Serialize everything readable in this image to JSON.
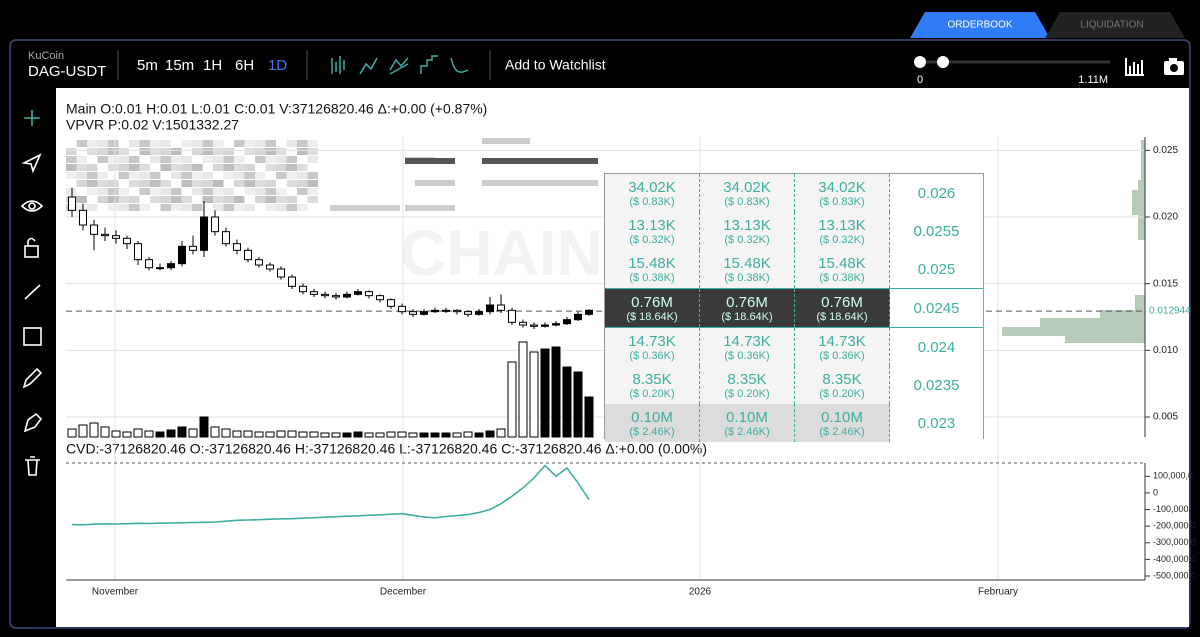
{
  "tabs": [
    "ORDERBOOK",
    "LIQUIDATION"
  ],
  "toolbar": {
    "exchange": "KuCoin",
    "pair": "DAG-USDT",
    "timeframes": [
      "5m",
      "15m",
      "1H",
      "6H",
      "1D"
    ],
    "watchlist": "Add to Watchlist",
    "slider_min": "0",
    "slider_max": "1.11M"
  },
  "main_legend": "Main O:0.01 H:0.01 L:0.01 C:0.01 V:37126820.46 Δ:+0.00 (+0.87%)",
  "vpvr_legend": "VPVR P:0.02 V:1501332.27",
  "watermark": "CHAIN",
  "price_chart": {
    "type": "candlestick",
    "candles": [
      [
        0.0215,
        0.0222,
        0.02,
        0.0205
      ],
      [
        0.0205,
        0.021,
        0.019,
        0.0194
      ],
      [
        0.0194,
        0.0198,
        0.0175,
        0.0187
      ],
      [
        0.0187,
        0.0192,
        0.0182,
        0.0186
      ],
      [
        0.0186,
        0.019,
        0.018,
        0.0184
      ],
      [
        0.0184,
        0.0186,
        0.0176,
        0.018
      ],
      [
        0.018,
        0.0182,
        0.0164,
        0.0168
      ],
      [
        0.0168,
        0.017,
        0.016,
        0.0162
      ],
      [
        0.0162,
        0.0165,
        0.016,
        0.0162
      ],
      [
        0.0162,
        0.0167,
        0.016,
        0.0165
      ],
      [
        0.0165,
        0.0182,
        0.0163,
        0.0178
      ],
      [
        0.0178,
        0.0186,
        0.0172,
        0.0175
      ],
      [
        0.0175,
        0.0212,
        0.017,
        0.02
      ],
      [
        0.02,
        0.0205,
        0.0186,
        0.0189
      ],
      [
        0.0189,
        0.0192,
        0.0178,
        0.018
      ],
      [
        0.018,
        0.0183,
        0.0172,
        0.0175
      ],
      [
        0.0175,
        0.0177,
        0.0166,
        0.0168
      ],
      [
        0.0168,
        0.017,
        0.0162,
        0.0164
      ],
      [
        0.0164,
        0.0166,
        0.0159,
        0.0161
      ],
      [
        0.0161,
        0.0163,
        0.0153,
        0.0155
      ],
      [
        0.0155,
        0.0157,
        0.0146,
        0.0148
      ],
      [
        0.0148,
        0.015,
        0.0142,
        0.0144
      ],
      [
        0.0144,
        0.0146,
        0.014,
        0.0142
      ],
      [
        0.0142,
        0.0144,
        0.0139,
        0.0141
      ],
      [
        0.0141,
        0.0143,
        0.0138,
        0.014
      ],
      [
        0.014,
        0.0144,
        0.0139,
        0.0142
      ],
      [
        0.0142,
        0.0146,
        0.0141,
        0.0144
      ],
      [
        0.0144,
        0.0145,
        0.0139,
        0.0141
      ],
      [
        0.0141,
        0.0142,
        0.0136,
        0.0138
      ],
      [
        0.0138,
        0.0139,
        0.0131,
        0.0133
      ],
      [
        0.0133,
        0.0135,
        0.0127,
        0.0129
      ],
      [
        0.0129,
        0.0131,
        0.0125,
        0.0127
      ],
      [
        0.0127,
        0.0131,
        0.0126,
        0.0129
      ],
      [
        0.0129,
        0.0132,
        0.0128,
        0.013
      ],
      [
        0.013,
        0.0132,
        0.0128,
        0.013
      ],
      [
        0.013,
        0.0131,
        0.0127,
        0.0129
      ],
      [
        0.0129,
        0.013,
        0.0125,
        0.0127
      ],
      [
        0.0127,
        0.0131,
        0.0126,
        0.0129
      ],
      [
        0.0129,
        0.014,
        0.0127,
        0.0134
      ],
      [
        0.0134,
        0.0142,
        0.0128,
        0.013
      ],
      [
        0.013,
        0.0132,
        0.0119,
        0.0121
      ],
      [
        0.0121,
        0.0123,
        0.0117,
        0.0119
      ],
      [
        0.0119,
        0.0121,
        0.0116,
        0.0118
      ],
      [
        0.0118,
        0.0121,
        0.0117,
        0.0119
      ],
      [
        0.0119,
        0.0122,
        0.0118,
        0.012
      ],
      [
        0.012,
        0.0125,
        0.0119,
        0.0123
      ],
      [
        0.0123,
        0.0129,
        0.0122,
        0.0127
      ],
      [
        0.0127,
        0.0131,
        0.0126,
        0.013
      ]
    ],
    "volumes": [
      8,
      12,
      14,
      10,
      6,
      5,
      8,
      6,
      5,
      7,
      10,
      8,
      20,
      10,
      8,
      6,
      6,
      5,
      5,
      6,
      6,
      5,
      5,
      4,
      4,
      4,
      5,
      4,
      4,
      5,
      5,
      4,
      4,
      4,
      4,
      4,
      5,
      4,
      6,
      8,
      75,
      95,
      85,
      88,
      90,
      70,
      65,
      40
    ],
    "ylim": [
      0.0035,
      0.026
    ],
    "yticks": [
      0.025,
      {
        "value": 0.02,
        "label": "0.020"
      },
      0.015,
      {
        "value": 0.01,
        "label": "0.010"
      },
      0.005
    ],
    "last_price": 0.012944,
    "xticks": [
      "November",
      "December",
      "2026",
      "February"
    ]
  },
  "orderbook": {
    "rows": [
      {
        "amount": "34.02K",
        "value": "($ 0.83K)",
        "price": "0.026"
      },
      {
        "amount": "13.13K",
        "value": "($ 0.32K)",
        "price": "0.0255"
      },
      {
        "amount": "15.48K",
        "value": "($ 0.38K)",
        "price": "0.025"
      },
      {
        "amount": "0.76M",
        "value": "($ 18.64K)",
        "price": "0.0245"
      },
      {
        "amount": "14.73K",
        "value": "($ 0.36K)",
        "price": "0.024"
      },
      {
        "amount": "8.35K",
        "value": "($ 0.20K)",
        "price": "0.0235"
      },
      {
        "amount": "0.10M",
        "value": "($ 2.46K)",
        "price": "0.023"
      }
    ]
  },
  "cvd": {
    "type": "line",
    "legend": "CVD:-37126820.46 O:-37126820.46 H:-37126820.46 L:-37126820.46 C:-37126820.46 Δ:+0.00 (0.00%)",
    "color": "#3fae9f",
    "values": [
      -190000000,
      -192000000,
      -188000000,
      -186000000,
      -187000000,
      -185000000,
      -183000000,
      -184000000,
      -182000000,
      -181000000,
      -180000000,
      -178000000,
      -177000000,
      -175000000,
      -170000000,
      -165000000,
      -163000000,
      -161000000,
      -158000000,
      -156000000,
      -155000000,
      -152000000,
      -149000000,
      -146000000,
      -143000000,
      -140000000,
      -138000000,
      -135000000,
      -132000000,
      -128000000,
      -125000000,
      -135000000,
      -145000000,
      -150000000,
      -142000000,
      -136000000,
      -130000000,
      -118000000,
      -100000000,
      -65000000,
      -20000000,
      30000000,
      90000000,
      165000000,
      100000000,
      150000000,
      60000000,
      -40000000
    ],
    "ylim": [
      -524000000,
      180000000
    ],
    "yticks": [
      {
        "value": 100000000,
        "label": "100,000,0"
      },
      0,
      {
        "value": -100000000,
        "label": "-100,000,"
      },
      {
        "value": -200000000,
        "label": "-200,000,0"
      },
      {
        "value": -300000000,
        "label": "-300,000,0"
      },
      {
        "value": -400000000,
        "label": "-400,000,0"
      },
      {
        "value": -500000000,
        "label": "-500,000,0"
      }
    ]
  }
}
